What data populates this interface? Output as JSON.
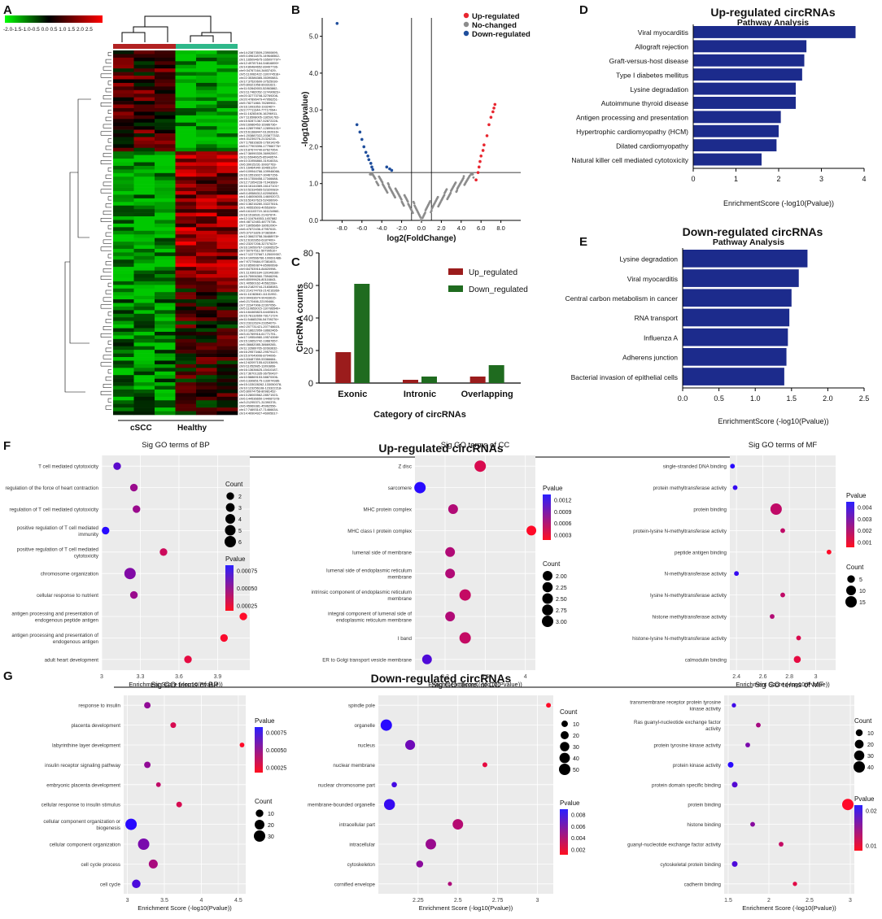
{
  "colors": {
    "heat_low": "#00ff00",
    "heat_mid": "#000000",
    "heat_high": "#ff0000",
    "group_cscc": "#b22222",
    "group_healthy": "#2eb88a",
    "up": "#e8262f",
    "nochange": "#8c8c8c",
    "down": "#1f4e9c",
    "bar_up": "#9b1c1c",
    "bar_down": "#1f6b1f",
    "pathway_bar": "#1c2b8c",
    "dot_grid_bg": "#ebebeb",
    "dot_grid_line": "#ffffff"
  },
  "panel_letters": [
    "A",
    "B",
    "C",
    "D",
    "E",
    "F",
    "G"
  ],
  "heatmap": {
    "scale_ticks": "-2.0-1.5-1.0-0.5 0.0 0.5 1.0 1.5 2.0 2.5",
    "group_labels": [
      "cSCC",
      "Healthy"
    ],
    "row_labels": [
      "chr14:23873509-23900699-",
      "chr5:149611876-149646562-",
      "chr1:165094675-165097797+",
      "chr12:49787164-54816890+",
      "chr14:89484652-89497736-",
      "chr9:34767164-34837429-",
      "chr5:110062422-110074518+",
      "chr22:35386385-35390883-",
      "chr17:37520600-37525030-",
      "chr5:89321958-89331621-",
      "chr11:52842653-52863862-",
      "chr3:117462052-117490623+",
      "chr20:32773708-32769208-",
      "chr20:47896479-47956251-",
      "chr5:78271860-78289902-",
      "chr16:1993353-1932467+",
      "chr3:77711344-77717094+",
      "chr11:16283406-16296911-",
      "chr7:116508005-116591763-",
      "chr15:52871367-52872228-",
      "chr8:16986453-16986736+",
      "chr4:128979967-128994101+",
      "chr15:61388447-61392616+",
      "chr1:203887022-203877332-",
      "chr4:31239276-21324215-",
      "chr7:176816826-176914245-",
      "chr5:177903396-177966776+",
      "chr15:87674740-87627954-",
      "chr17:36990339-36992597-",
      "chr11:65940625-65949574-",
      "chr10:31956860-31916034-",
      "chr6:39915231-39937763-",
      "chr1:16464940-16465125+",
      "chr9:109944766-109946066-",
      "chr16:15516027-30467156-",
      "chr16:17358458-17346688-",
      "chr12:71954228-71943689-",
      "chr16:16144369-16147101+",
      "chr10:52334565-52320083+",
      "chr5:149586312-62098369-",
      "chr1:146006005-146092072-",
      "chr16:52437623-52436090-",
      "chr2:138216280-33227816-",
      "chr1:40553503-40553909-",
      "chr5:161103719-161134960-",
      "chr18:1518631-21437874-",
      "chr12:116764553-1457882",
      "chr4:48712483-48775738-",
      "chr7:18056860-18061090+",
      "chr6:47872436-47957615-",
      "chr5:37371826-37382894-",
      "chr12:36623758-36488978+",
      "chr12:6102853-6187400+",
      "chr2:23207208-32707623+",
      "chr16:19056767-19306525+",
      "chr7:50797511-50799510+",
      "chr17:122737667-125009307-",
      "chr14:100566766-100691486-",
      "chr7:97279684-97381603-",
      "chr10:85960874-85960698-",
      "chr9:84753916-84820998-",
      "chr1:119303184-119346160-",
      "chr15:75906360-75946296-",
      "chr5:80099626-80116843-",
      "chr1:40560162-40562268+",
      "chr16:21829744-21838083-",
      "chr2:214174703-214216369-",
      "chr11:11082840-11131992-",
      "chr3:90433674-90433615-",
      "chr6:2170466-22190466-",
      "chr7:22347908-22307056-",
      "chr5:110653015-110786549+",
      "chr14:64465823-64405819-",
      "chr15:78132659-78171724-",
      "chr11:54683256-54709276+",
      "chr3:23312624-23354079-",
      "chr2:207731421-207748615-",
      "chr10:18622959-18662465-",
      "chr3:41769916-61771791-",
      "chr17:19554980-19574398+",
      "chr15:19652742-19667657-",
      "chr5:36682085-38669265-",
      "chr11:32669765-32663632-",
      "chr16:29573462-29579127-",
      "chr15:97049006-8704006-",
      "chr3:53487359-53366684-",
      "chr12:62097155-62153699-",
      "chr9:11052985-11093866-",
      "chr16:13636625-15410187-",
      "chr17:36701335-36750437-",
      "chr10:58869153-58870006-",
      "chr6:133085175-133074386-",
      "chr15:133028262-133050078-",
      "chr10:123256108-123322218-",
      "chr5:80974758-80981452-",
      "chr13:28000562-28571923-",
      "chr6:144536650-144087378-",
      "chr3:21295371-31390378-",
      "chr6:45969381-45962556-",
      "chr17:74693147-71466634-",
      "chr14:40904927-46905617-"
    ]
  },
  "volcano": {
    "legend": [
      "Up-regulated",
      "No-changed",
      "Down-regulated"
    ],
    "xlabel": "log2(FoldChange)",
    "ylabel": "-log10(pvalue)"
  },
  "chart_data": [
    {
      "id": "B",
      "type": "scatter",
      "title": "",
      "xlabel": "log2(FoldChange)",
      "ylabel": "-log10(pvalue)",
      "xlim": [
        -10,
        10
      ],
      "ylim": [
        0,
        5.5
      ],
      "xticks": [
        -8.0,
        -6.0,
        -4.0,
        -2.0,
        0.0,
        2.0,
        4.0,
        6.0,
        8.0
      ],
      "yticks": [
        0.0,
        1.0,
        2.0,
        3.0,
        4.0,
        5.0
      ],
      "threshold_lines": {
        "x": [
          -1,
          1
        ],
        "y": 1.3
      },
      "series": [
        {
          "name": "Up-regulated",
          "points": [
            [
              5.5,
              1.1
            ],
            [
              5.7,
              1.3
            ],
            [
              5.8,
              1.45
            ],
            [
              5.9,
              1.6
            ],
            [
              6.0,
              1.75
            ],
            [
              6.2,
              1.9
            ],
            [
              6.3,
              2.05
            ],
            [
              6.6,
              2.3
            ],
            [
              6.8,
              2.6
            ],
            [
              7.0,
              2.8
            ],
            [
              7.2,
              2.95
            ],
            [
              7.3,
              3.05
            ],
            [
              7.4,
              3.15
            ]
          ]
        },
        {
          "name": "No-changed",
          "points": []
        },
        {
          "name": "Down-regulated",
          "points": [
            [
              -8.5,
              5.35
            ],
            [
              -6.5,
              2.6
            ],
            [
              -6.2,
              2.4
            ],
            [
              -6.0,
              2.2
            ],
            [
              -5.8,
              2.0
            ],
            [
              -5.6,
              1.85
            ],
            [
              -5.4,
              1.75
            ],
            [
              -5.3,
              1.65
            ],
            [
              -5.1,
              1.55
            ],
            [
              -5.0,
              1.45
            ],
            [
              -4.9,
              1.38
            ],
            [
              -3.5,
              1.45
            ],
            [
              -3.2,
              1.4
            ],
            [
              -3.0,
              1.36
            ]
          ]
        }
      ]
    },
    {
      "id": "C",
      "type": "bar",
      "title": "",
      "xlabel": "Category of circRNAs",
      "ylabel": "CircRNA counts",
      "categories": [
        "Exonic",
        "Intronic",
        "Overlapping"
      ],
      "ylim": [
        0,
        80
      ],
      "yticks": [
        0,
        20,
        40,
        60,
        80
      ],
      "series": [
        {
          "name": "Up_regulated",
          "values": [
            19,
            2,
            4
          ]
        },
        {
          "name": "Down_regulated",
          "values": [
            61,
            4,
            11
          ]
        }
      ]
    },
    {
      "id": "D",
      "type": "bar",
      "orientation": "horizontal",
      "title": "Up-regulated circRNAs",
      "subtitle": "Pathway Analysis",
      "xlabel": "EnrichmentScore (-log10(Pvalue))",
      "xlim": [
        0,
        4
      ],
      "xticks": [
        0,
        1,
        2,
        3,
        4
      ],
      "categories": [
        "Viral myocarditis",
        "Allograft rejection",
        "Graft-versus-host disease",
        "Type I diabetes mellitus",
        "Lysine degradation",
        "Autoimmune thyroid disease",
        "Antigen processing and presentation",
        "Hypertrophic cardiomyopathy (HCM)",
        "Dilated cardiomyopathy",
        "Natural killer cell mediated cytotoxicity"
      ],
      "values": [
        3.8,
        2.65,
        2.6,
        2.55,
        2.4,
        2.4,
        2.05,
        2.0,
        1.95,
        1.6
      ]
    },
    {
      "id": "E",
      "type": "bar",
      "orientation": "horizontal",
      "title": "Down-regulated circRNAs",
      "subtitle": "Pathway Analysis",
      "xlabel": "EnrichmentScore (-log10(Pvalue))",
      "xlim": [
        0,
        2.5
      ],
      "xticks": [
        0.0,
        0.5,
        1.0,
        1.5,
        2.0,
        2.5
      ],
      "categories": [
        "Lysine degradation",
        "Viral myocarditis",
        "Central carbon metabolism in cancer",
        "RNA transport",
        "Influenza A",
        "Adherens junction",
        "Bacterial invasion of epithelial cells"
      ],
      "values": [
        1.72,
        1.6,
        1.5,
        1.47,
        1.45,
        1.43,
        1.4
      ]
    },
    {
      "id": "F-BP",
      "type": "scatter",
      "group": "Up-regulated circRNAs",
      "title": "Sig GO terms of BP",
      "xlabel": "Enrichment Score (-log10(Pvalue))",
      "xlim": [
        3.0,
        4.15
      ],
      "xticks": [
        3.0,
        3.3,
        3.6,
        3.9
      ],
      "terms": [
        "T cell mediated cytotoxicity",
        "regulation of the force of heart contraction",
        "regulation of T cell mediated cytotoxicity",
        "positive regulation of T cell mediated immunity",
        "positive regulation of T cell mediated cytotoxicity",
        "chromosome organization",
        "cellular response to nutrient",
        "antigen processing and presentation of endogenous peptide antigen",
        "antigen processing and presentation of endogenous antigen",
        "adult heart development"
      ],
      "x": [
        3.12,
        3.25,
        3.27,
        3.03,
        3.48,
        3.22,
        3.25,
        4.1,
        3.95,
        3.67
      ],
      "count": [
        2,
        2,
        2,
        2,
        2,
        6,
        2,
        2,
        2,
        2
      ],
      "pvalue": [
        0.00075,
        0.0005,
        0.0005,
        0.00095,
        0.0003,
        0.0006,
        0.0005,
        0.0001,
        0.00012,
        0.0002
      ],
      "size_legend": {
        "title": "Count",
        "values": [
          2,
          3,
          4,
          5,
          6
        ]
      },
      "color_legend": {
        "title": "Pvalue",
        "values": [
          0.00075,
          0.0005,
          0.00025
        ],
        "labels": [
          "0.00075",
          "0.00050",
          "0.00025"
        ]
      }
    },
    {
      "id": "F-CC",
      "type": "scatter",
      "group": "Up-regulated circRNAs",
      "title": "Sig GO terms of CC",
      "xlabel": "Enrichment Score (-log10(Pvalue))",
      "xlim": [
        2.9,
        4.1
      ],
      "xticks": [
        3.2,
        3.6,
        4.0
      ],
      "terms": [
        "Z disc",
        "sarcomere",
        "MHC protein complex",
        "MHC class I protein complex",
        "lumenal side of membrane",
        "lumenal side of endoplasmic reticulum membrane",
        "intrinsic component of endoplasmic reticulum membrane",
        "integral component of lumenal side of endoplasmic reticulum membrane",
        "I band",
        "ER to Golgi transport vesicle membrane"
      ],
      "x": [
        3.55,
        2.95,
        3.28,
        4.06,
        3.25,
        3.25,
        3.4,
        3.25,
        3.4,
        3.02
      ],
      "count": [
        3,
        3,
        2,
        2,
        2,
        2,
        3,
        2,
        3,
        2
      ],
      "pvalue": [
        0.0003,
        0.0012,
        0.0005,
        0.0001,
        0.0005,
        0.0005,
        0.0004,
        0.0005,
        0.0004,
        0.001
      ],
      "size_legend": {
        "title": "Count",
        "values": [
          2.0,
          2.25,
          2.5,
          2.75,
          3.0
        ],
        "labels": [
          "2.00",
          "2.25",
          "2.50",
          "2.75",
          "3.00"
        ]
      },
      "color_legend": {
        "title": "Pvalue",
        "values": [
          0.0012,
          0.0009,
          0.0006,
          0.0003
        ],
        "labels": [
          "0.0012",
          "0.0009",
          "0.0006",
          "0.0003"
        ]
      }
    },
    {
      "id": "F-MF",
      "type": "scatter",
      "group": "Up-regulated circRNAs",
      "title": "Sig GO terms of MF",
      "xlabel": "Enrichment Score (-log10(Pvalue))",
      "xlim": [
        2.35,
        3.15
      ],
      "xticks": [
        2.4,
        2.6,
        2.8,
        3.0
      ],
      "terms": [
        "single-stranded DNA binding",
        "protein methyltransferase activity",
        "protein binding",
        "protein-lysine N-methyltransferase activity",
        "peptide antigen binding",
        "N-methyltransferase activity",
        "lysine N-methyltransferase activity",
        "histone methyltransferase activity",
        "histone-lysine N-methyltransferase activity",
        "calmodulin binding"
      ],
      "x": [
        2.37,
        2.39,
        2.7,
        2.75,
        3.1,
        2.4,
        2.75,
        2.67,
        2.87,
        2.86
      ],
      "count": [
        1,
        1,
        15,
        1,
        1,
        1,
        1,
        1,
        1,
        4
      ],
      "pvalue": [
        0.0042,
        0.004,
        0.0018,
        0.0018,
        0.0008,
        0.004,
        0.0018,
        0.002,
        0.0014,
        0.0012
      ],
      "size_legend": {
        "title": "Count",
        "values": [
          5,
          10,
          15
        ]
      },
      "color_legend": {
        "title": "Pvalue",
        "values": [
          0.004,
          0.003,
          0.002,
          0.001
        ],
        "labels": [
          "0.004",
          "0.003",
          "0.002",
          "0.001"
        ]
      }
    },
    {
      "id": "G-BP",
      "type": "scatter",
      "group": "Down-regulated circRNAs",
      "title": "Sig GO terms of BP",
      "xlabel": "Enrichment Score (-log10(Pvalue))",
      "xlim": [
        2.95,
        4.6
      ],
      "xticks": [
        3.0,
        3.5,
        4.0,
        4.5
      ],
      "terms": [
        "response to insulin",
        "placenta development",
        "labyrinthine layer development",
        "insulin receptor signaling pathway",
        "embryonic placenta development",
        "cellular response to insulin stimulus",
        "cellular component organization or biogenesis",
        "cellular component organization",
        "cell cycle process",
        "cell cycle"
      ],
      "x": [
        3.27,
        3.62,
        4.55,
        3.27,
        3.42,
        3.7,
        3.05,
        3.22,
        3.35,
        3.12
      ],
      "count": [
        6,
        4,
        2,
        6,
        2,
        4,
        30,
        30,
        16,
        14
      ],
      "pvalue": [
        0.0005,
        0.0002,
        3e-05,
        0.0005,
        0.0003,
        0.0002,
        0.00095,
        0.0006,
        0.0004,
        0.0008
      ],
      "size_legend": {
        "title": "Count",
        "values": [
          10,
          20,
          30
        ]
      },
      "color_legend": {
        "title": "Pvalue",
        "values": [
          0.00075,
          0.0005,
          0.00025
        ],
        "labels": [
          "0.00075",
          "0.00050",
          "0.00025"
        ]
      }
    },
    {
      "id": "G-CC",
      "type": "scatter",
      "group": "Down-regulated circRNAs",
      "title": "Sig GO terms of CC",
      "xlabel": "Enrichment Score (-log10(Pvalue))",
      "xlim": [
        2.0,
        3.1
      ],
      "xticks": [
        2.25,
        2.5,
        2.75,
        3.0
      ],
      "terms": [
        "spindle pole",
        "organelle",
        "nucleus",
        "nuclear membrane",
        "nuclear chromosome part",
        "membrane-bounded organelle",
        "intracellular part",
        "intracellular",
        "cytoskeleton",
        "cornified envelope"
      ],
      "x": [
        3.07,
        2.05,
        2.2,
        2.67,
        2.1,
        2.07,
        2.5,
        2.33,
        2.26,
        2.45
      ],
      "count": [
        4,
        55,
        38,
        4,
        6,
        50,
        45,
        45,
        14,
        2
      ],
      "pvalue": [
        0.0009,
        0.0085,
        0.006,
        0.0018,
        0.0075,
        0.008,
        0.0035,
        0.0045,
        0.005,
        0.0038
      ],
      "size_legend": {
        "title": "Count",
        "values": [
          10,
          20,
          30,
          40,
          50
        ]
      },
      "color_legend": {
        "title": "Pvalue",
        "values": [
          0.008,
          0.006,
          0.004,
          0.002
        ],
        "labels": [
          "0.008",
          "0.006",
          "0.004",
          "0.002"
        ]
      }
    },
    {
      "id": "G-MF",
      "type": "scatter",
      "group": "Down-regulated circRNAs",
      "title": "Sig GO terms of MF",
      "xlabel": "Enrichment Score (-log10(Pvalue))",
      "xlim": [
        1.45,
        3.05
      ],
      "xticks": [
        1.5,
        2.0,
        2.5,
        3.0
      ],
      "terms": [
        "transmembrane receptor protein tyrosine kinase activity",
        "Ras guanyl-nucleotide exchange factor activity",
        "protein tyrosine kinase activity",
        "protein kinase activity",
        "protein domain specific binding",
        "protein binding",
        "histone binding",
        "guanyl-nucleotide exchange factor activity",
        "cytoskeletal protein binding",
        "cadherin binding"
      ],
      "x": [
        1.57,
        1.87,
        1.74,
        1.53,
        1.58,
        2.97,
        1.8,
        2.15,
        1.58,
        2.32
      ],
      "count": [
        2,
        3,
        3,
        6,
        6,
        45,
        3,
        3,
        6,
        2
      ],
      "pvalue": [
        0.028,
        0.014,
        0.02,
        0.031,
        0.025,
        0.002,
        0.018,
        0.01,
        0.026,
        0.006
      ],
      "size_legend": {
        "title": "Count",
        "values": [
          10,
          20,
          30,
          40
        ]
      },
      "color_legend": {
        "title": "Pvalue",
        "values": [
          0.02,
          0.01
        ],
        "labels": [
          "0.02",
          "0.01"
        ]
      }
    }
  ]
}
